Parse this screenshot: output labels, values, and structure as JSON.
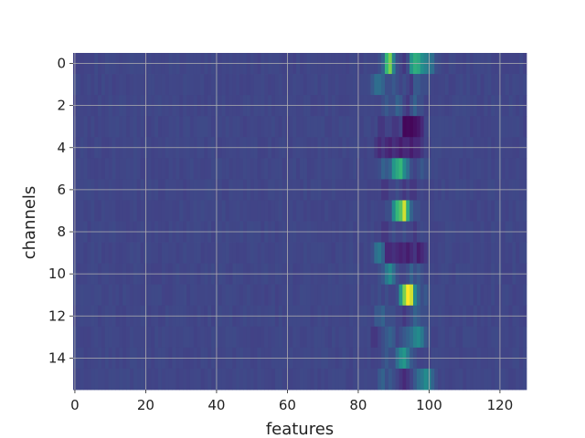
{
  "chart_data": {
    "type": "heatmap",
    "title": "",
    "xlabel": "features",
    "ylabel": "channels",
    "xlim": [
      -0.5,
      127.5
    ],
    "ylim": [
      15.5,
      -0.5
    ],
    "y_inverted": true,
    "grid": true,
    "grid_color": "#b0b0b0",
    "colormap": "viridis",
    "value_range": [
      0,
      1
    ],
    "background_level": 0.26,
    "n_rows": 16,
    "n_cols": 128,
    "xticks": [
      0,
      20,
      40,
      60,
      80,
      100,
      120
    ],
    "xtick_labels": [
      "0",
      "20",
      "40",
      "60",
      "80",
      "100",
      "120"
    ],
    "yticks": [
      0,
      2,
      4,
      6,
      8,
      10,
      12,
      14
    ],
    "ytick_labels": [
      "0",
      "2",
      "4",
      "6",
      "8",
      "10",
      "12",
      "14"
    ],
    "rows": [
      {
        "channel": 0,
        "features": [
          86,
          87,
          88,
          89,
          90,
          91,
          92,
          93,
          94,
          95,
          96,
          97,
          98,
          99,
          100,
          101,
          102
        ],
        "values": [
          0.3,
          0.4,
          0.75,
          0.85,
          0.55,
          0.3,
          0.25,
          0.2,
          0.3,
          0.65,
          0.72,
          0.7,
          0.62,
          0.55,
          0.5,
          0.45,
          0.3
        ]
      },
      {
        "channel": 1,
        "features": [
          84,
          85,
          86,
          87,
          88,
          89,
          90,
          91,
          92,
          93,
          94,
          95,
          96,
          97,
          98,
          99,
          100,
          101
        ],
        "values": [
          0.35,
          0.45,
          0.45,
          0.4,
          0.3,
          0.3,
          0.35,
          0.3,
          0.25,
          0.3,
          0.25,
          0.2,
          0.35,
          0.35,
          0.3,
          0.3,
          0.28,
          0.25
        ]
      },
      {
        "channel": 2,
        "features": [
          86,
          87,
          88,
          89,
          90,
          91,
          92,
          93,
          94,
          95,
          96,
          97,
          98
        ],
        "values": [
          0.25,
          0.3,
          0.35,
          0.3,
          0.3,
          0.4,
          0.35,
          0.25,
          0.2,
          0.3,
          0.4,
          0.3,
          0.3
        ]
      },
      {
        "channel": 3,
        "features": [
          86,
          87,
          88,
          89,
          90,
          91,
          92,
          93,
          94,
          95,
          96,
          97,
          98
        ],
        "values": [
          0.2,
          0.2,
          0.25,
          0.25,
          0.2,
          0.2,
          0.25,
          0.02,
          0.03,
          0.02,
          0.05,
          0.08,
          0.15
        ]
      },
      {
        "channel": 4,
        "features": [
          85,
          86,
          87,
          88,
          89,
          90,
          91,
          92,
          93,
          94,
          95,
          96,
          97,
          98
        ],
        "values": [
          0.2,
          0.15,
          0.2,
          0.15,
          0.12,
          0.18,
          0.15,
          0.1,
          0.15,
          0.15,
          0.1,
          0.15,
          0.15,
          0.2
        ]
      },
      {
        "channel": 5,
        "features": [
          86,
          87,
          88,
          89,
          90,
          91,
          92,
          93,
          94,
          95,
          96,
          97,
          98,
          99,
          100
        ],
        "values": [
          0.3,
          0.4,
          0.35,
          0.4,
          0.65,
          0.7,
          0.75,
          0.6,
          0.45,
          0.3,
          0.25,
          0.3,
          0.35,
          0.3,
          0.3
        ]
      },
      {
        "channel": 6,
        "features": [
          86,
          87,
          88,
          89,
          90,
          91,
          92,
          93,
          94,
          95,
          96,
          97
        ],
        "values": [
          0.25,
          0.2,
          0.2,
          0.25,
          0.25,
          0.3,
          0.25,
          0.2,
          0.25,
          0.2,
          0.2,
          0.25
        ]
      },
      {
        "channel": 7,
        "features": [
          86,
          87,
          88,
          89,
          90,
          91,
          92,
          93,
          94,
          95,
          96,
          97
        ],
        "values": [
          0.25,
          0.25,
          0.3,
          0.3,
          0.6,
          0.75,
          0.8,
          0.95,
          0.7,
          0.4,
          0.3,
          0.3
        ]
      },
      {
        "channel": 8,
        "features": [
          86,
          87,
          88,
          89,
          90,
          91,
          92,
          93,
          94,
          95,
          96
        ],
        "values": [
          0.25,
          0.2,
          0.2,
          0.25,
          0.3,
          0.25,
          0.25,
          0.3,
          0.25,
          0.25,
          0.2
        ]
      },
      {
        "channel": 9,
        "features": [
          84,
          85,
          86,
          87,
          88,
          89,
          90,
          91,
          92,
          93,
          94,
          95,
          96,
          97,
          98,
          99,
          100
        ],
        "values": [
          0.3,
          0.45,
          0.5,
          0.4,
          0.15,
          0.15,
          0.18,
          0.15,
          0.12,
          0.15,
          0.1,
          0.15,
          0.2,
          0.1,
          0.15,
          0.2,
          0.25
        ]
      },
      {
        "channel": 10,
        "features": [
          86,
          87,
          88,
          89,
          90,
          91,
          92,
          93,
          94,
          95,
          96,
          97,
          98
        ],
        "values": [
          0.3,
          0.35,
          0.5,
          0.6,
          0.45,
          0.3,
          0.25,
          0.25,
          0.3,
          0.4,
          0.3,
          0.35,
          0.3
        ]
      },
      {
        "channel": 11,
        "features": [
          86,
          87,
          88,
          89,
          90,
          91,
          92,
          93,
          94,
          95,
          96,
          97,
          98,
          99,
          100
        ],
        "values": [
          0.3,
          0.25,
          0.3,
          0.25,
          0.25,
          0.3,
          0.65,
          0.85,
          1.0,
          0.95,
          0.6,
          0.4,
          0.3,
          0.35,
          0.3
        ]
      },
      {
        "channel": 12,
        "features": [
          85,
          86,
          87,
          88,
          89,
          90,
          91,
          92,
          93,
          94,
          95,
          96,
          97,
          98,
          99,
          100
        ],
        "values": [
          0.35,
          0.35,
          0.4,
          0.3,
          0.3,
          0.3,
          0.25,
          0.25,
          0.2,
          0.25,
          0.3,
          0.4,
          0.35,
          0.3,
          0.3,
          0.28
        ]
      },
      {
        "channel": 13,
        "features": [
          84,
          85,
          86,
          87,
          88,
          89,
          90,
          91,
          92,
          93,
          94,
          95,
          96,
          97,
          98,
          99,
          100
        ],
        "values": [
          0.2,
          0.2,
          0.25,
          0.3,
          0.35,
          0.4,
          0.35,
          0.25,
          0.3,
          0.35,
          0.4,
          0.45,
          0.55,
          0.6,
          0.5,
          0.35,
          0.3
        ]
      },
      {
        "channel": 14,
        "features": [
          86,
          87,
          88,
          89,
          90,
          91,
          92,
          93,
          94,
          95,
          96,
          97
        ],
        "values": [
          0.25,
          0.3,
          0.35,
          0.3,
          0.3,
          0.45,
          0.6,
          0.65,
          0.5,
          0.35,
          0.3,
          0.25
        ]
      },
      {
        "channel": 15,
        "features": [
          86,
          87,
          88,
          89,
          90,
          91,
          92,
          93,
          94,
          95,
          96,
          97,
          98,
          99,
          100,
          101,
          102
        ],
        "values": [
          0.35,
          0.4,
          0.3,
          0.35,
          0.3,
          0.25,
          0.2,
          0.15,
          0.2,
          0.25,
          0.35,
          0.45,
          0.5,
          0.6,
          0.55,
          0.4,
          0.3
        ]
      }
    ]
  }
}
